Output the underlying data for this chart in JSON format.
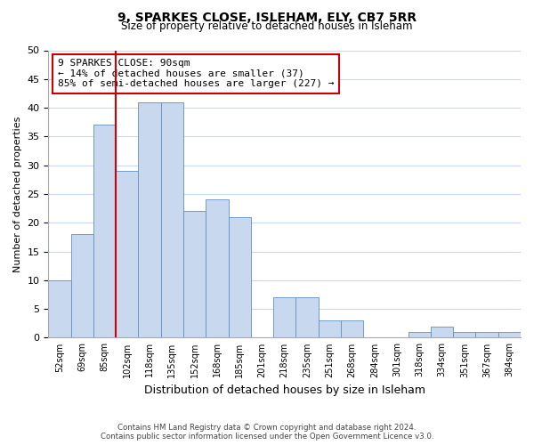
{
  "title": "9, SPARKES CLOSE, ISLEHAM, ELY, CB7 5RR",
  "subtitle": "Size of property relative to detached houses in Isleham",
  "xlabel": "Distribution of detached houses by size in Isleham",
  "ylabel": "Number of detached properties",
  "bin_labels": [
    "52sqm",
    "69sqm",
    "85sqm",
    "102sqm",
    "118sqm",
    "135sqm",
    "152sqm",
    "168sqm",
    "185sqm",
    "201sqm",
    "218sqm",
    "235sqm",
    "251sqm",
    "268sqm",
    "284sqm",
    "301sqm",
    "318sqm",
    "334sqm",
    "351sqm",
    "367sqm",
    "384sqm"
  ],
  "bar_heights": [
    10,
    18,
    37,
    29,
    41,
    41,
    22,
    24,
    21,
    0,
    7,
    7,
    3,
    3,
    0,
    0,
    1,
    2,
    1,
    1,
    1
  ],
  "bar_color": "#c8d8ee",
  "bar_edge_color": "#6090c0",
  "vline_color": "#cc0000",
  "vline_x_index": 2,
  "annotation_text": "9 SPARKES CLOSE: 90sqm\n← 14% of detached houses are smaller (37)\n85% of semi-detached houses are larger (227) →",
  "annotation_box_color": "#ffffff",
  "annotation_box_edge": "#cc0000",
  "ylim": [
    0,
    50
  ],
  "yticks": [
    0,
    5,
    10,
    15,
    20,
    25,
    30,
    35,
    40,
    45,
    50
  ],
  "footer_line1": "Contains HM Land Registry data © Crown copyright and database right 2024.",
  "footer_line2": "Contains public sector information licensed under the Open Government Licence v3.0.",
  "background_color": "#ffffff",
  "grid_color": "#c8d8ee"
}
